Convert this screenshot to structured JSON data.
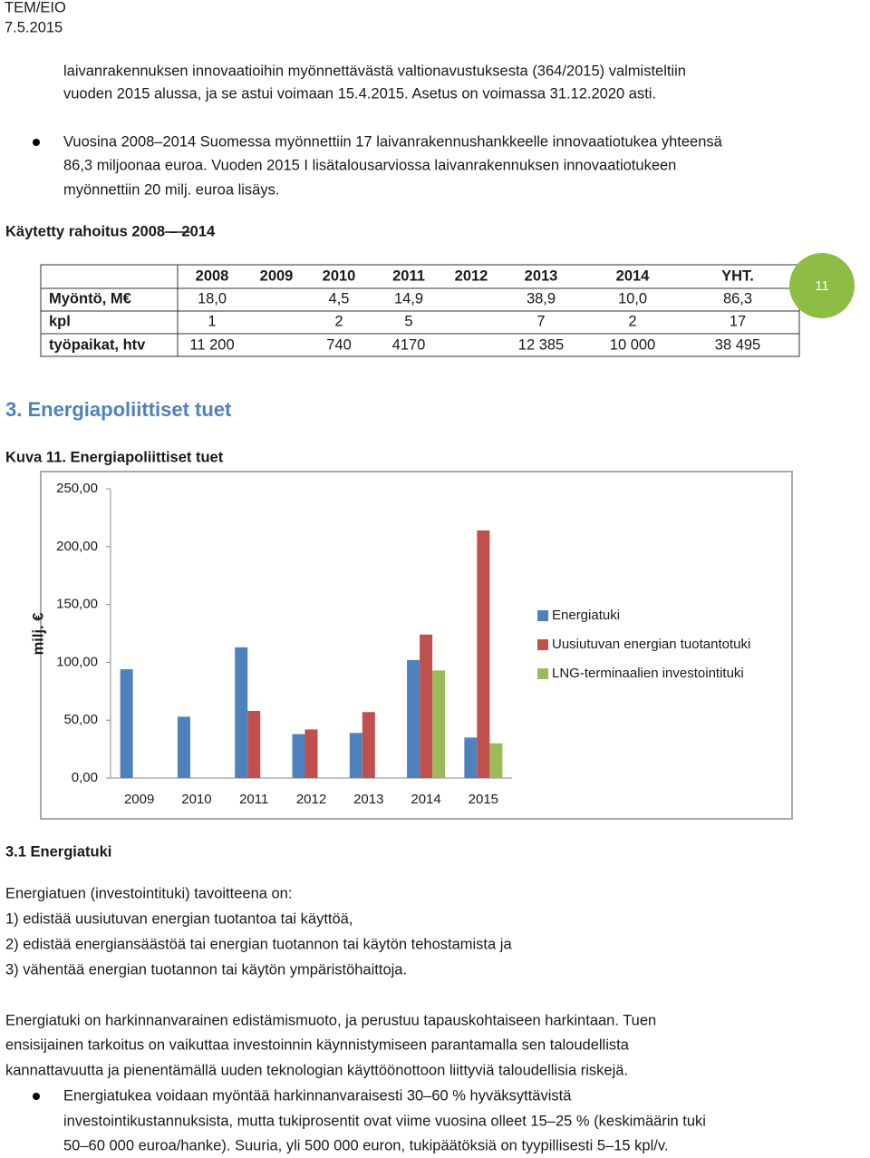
{
  "header": {
    "org": "TEM/EIO",
    "date": "7.5.2015"
  },
  "intro_lines": [
    "laivanrakennuksen innovaatioihin myönnettävästä valtionavustuksesta (364/2015) valmisteltiin",
    "vuoden 2015 alussa, ja se astui voimaan 15.4.2015. Asetus on voimassa 31.12.2020 asti."
  ],
  "bullet_1_lines": [
    "Vuosina 2008–2014 Suomessa myönnettiin 17 laivanrakennushankkeelle innovaatiotukea yhteensä",
    "86,3 miljoonaa euroa. Vuoden 2015 I lisätalousarviossa laivanrakennuksen innovaatiotukeen",
    "myönnettiin 20 milj. euroa lisäys."
  ],
  "table_title": "Käytetty rahoitus 2008 – 2014",
  "table": {
    "header": [
      null,
      "2008",
      "2009",
      "2010",
      "2011",
      "2012",
      "2013",
      "2014",
      "YHT."
    ],
    "rows": [
      [
        "Myöntö, M€",
        "18,0",
        null,
        "4,5",
        "14,9",
        null,
        "38,9",
        "10,0",
        "86,3"
      ],
      [
        "kpl",
        "1",
        null,
        "2",
        "5",
        null,
        "7",
        "2",
        "17"
      ],
      [
        "työpaikat, htv",
        "11 200",
        null,
        "740",
        "4170",
        null,
        "12 385",
        "10 000",
        "38 495"
      ]
    ]
  },
  "page_number": "11",
  "section_heading": "3. Energiapoliittiset tuet",
  "figure_caption": "Kuva 11. Energiapoliittiset tuet",
  "chart_data": {
    "type": "bar",
    "ylabel": "milj. €",
    "categories": [
      "2009",
      "2010",
      "2011",
      "2012",
      "2013",
      "2014",
      "2015"
    ],
    "series": [
      {
        "name": "Energiatuki",
        "color": "#4f81bd",
        "values": [
          94,
          53,
          113,
          38,
          39,
          102,
          35
        ]
      },
      {
        "name": "Uusiutuvan energian tuotantotuki",
        "color": "#c0504d",
        "values": [
          null,
          null,
          58,
          42,
          57,
          124,
          214
        ]
      },
      {
        "name": "LNG-terminaalien investointituki",
        "color": "#9bbb59",
        "values": [
          null,
          null,
          null,
          null,
          null,
          93,
          30
        ]
      }
    ],
    "ylim": [
      0,
      250
    ],
    "yticks": [
      {
        "value": 0,
        "label": "0,00"
      },
      {
        "value": 50,
        "label": "50,00"
      },
      {
        "value": 100,
        "label": "100,00"
      },
      {
        "value": 150,
        "label": "150,00"
      },
      {
        "value": 200,
        "label": "200,00"
      },
      {
        "value": 250,
        "label": "250,00"
      }
    ],
    "grid": false,
    "legend": "right"
  },
  "subsection_heading": "3.1 Energiatuki",
  "body_lines": [
    "Energiatuen (investointituki) tavoitteena on:",
    "1) edistää uusiutuvan energian tuotantoa tai käyttöä,",
    "2) edistää energiansäästöä tai energian tuotannon tai käytön tehostamista ja",
    "3) vähentää energian tuotannon tai käytön ympäristöhaittoja."
  ],
  "paragraph_lines": [
    "Energiatuki on harkinnanvarainen edistämismuoto, ja perustuu tapauskohtaiseen harkintaan. Tuen",
    "ensisijainen tarkoitus on vaikuttaa investoinnin käynnistymiseen parantamalla sen taloudellista",
    "kannattavuutta ja pienentämällä uuden teknologian käyttöönottoon liittyviä taloudellisia riskejä."
  ],
  "bullet_2_lines": [
    "Energiatukea voidaan myöntää harkinnanvaraisesti 30–60 % hyväksyttävistä",
    "investointikustannuksista, mutta tukiprosentit ovat viime vuosina olleet 15–25 % (keskimäärin tuki",
    "50–60 000 euroa/hanke). Suuria, yli 500 000 euron, tukipäätöksiä on tyypillisesti 5–15 kpl/v."
  ]
}
